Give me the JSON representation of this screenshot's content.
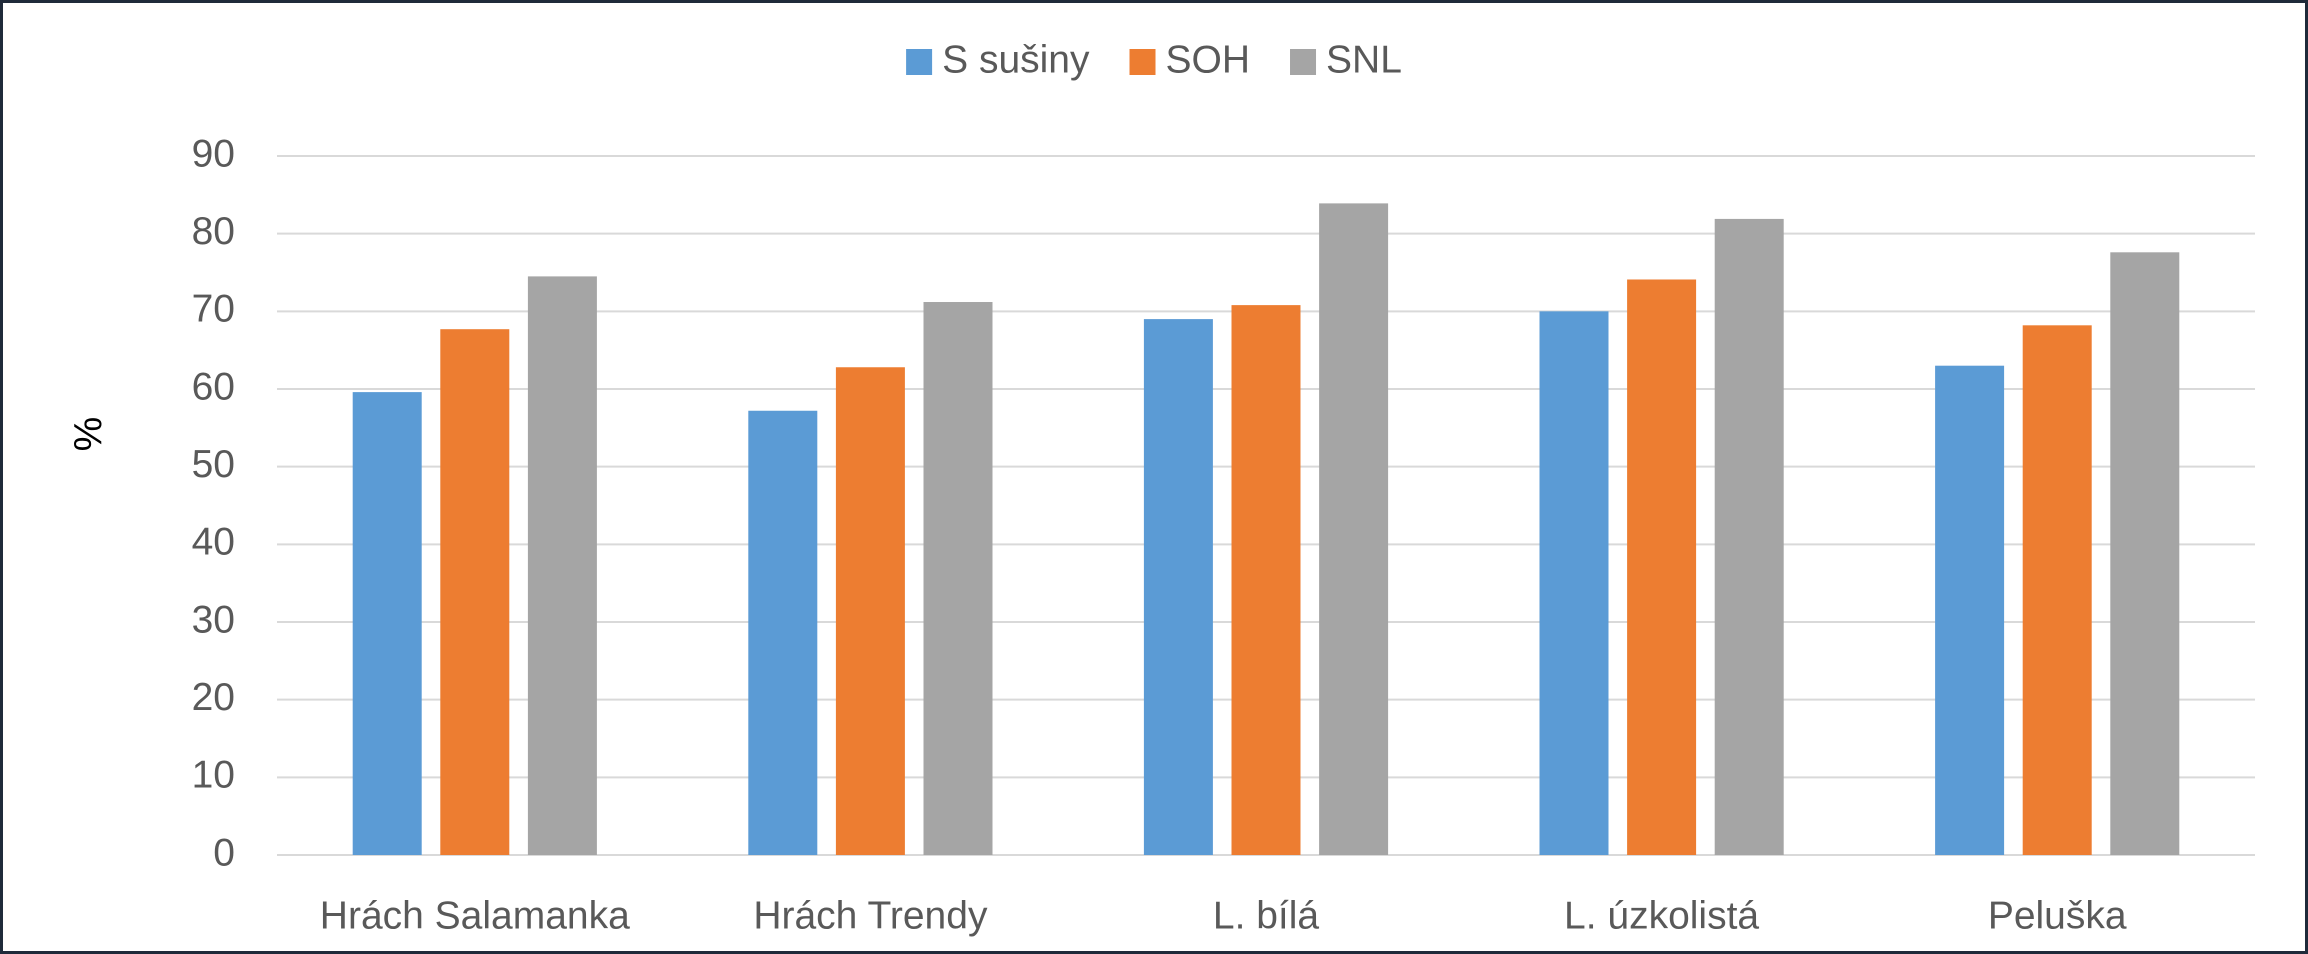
{
  "chart_data": {
    "type": "bar",
    "y_label": "%",
    "categories": [
      "Hrách Salamanka",
      "Hrách Trendy",
      "L. bílá",
      "L. úzkolistá",
      "Peluška"
    ],
    "series": [
      {
        "name": "S sušiny",
        "color": "#5b9bd5",
        "values": [
          59.6,
          57.2,
          69.0,
          70.0,
          63.0
        ]
      },
      {
        "name": "SOH",
        "color": "#ed7d31",
        "values": [
          67.7,
          62.8,
          70.8,
          74.1,
          68.2
        ]
      },
      {
        "name": "SNL",
        "color": "#a5a5a5",
        "values": [
          74.5,
          71.2,
          83.9,
          81.9,
          77.6
        ]
      }
    ],
    "ylim": [
      0,
      90
    ],
    "yticks": [
      0,
      10,
      20,
      30,
      40,
      50,
      60,
      70,
      80,
      90
    ],
    "grid": true,
    "legend": "top"
  }
}
